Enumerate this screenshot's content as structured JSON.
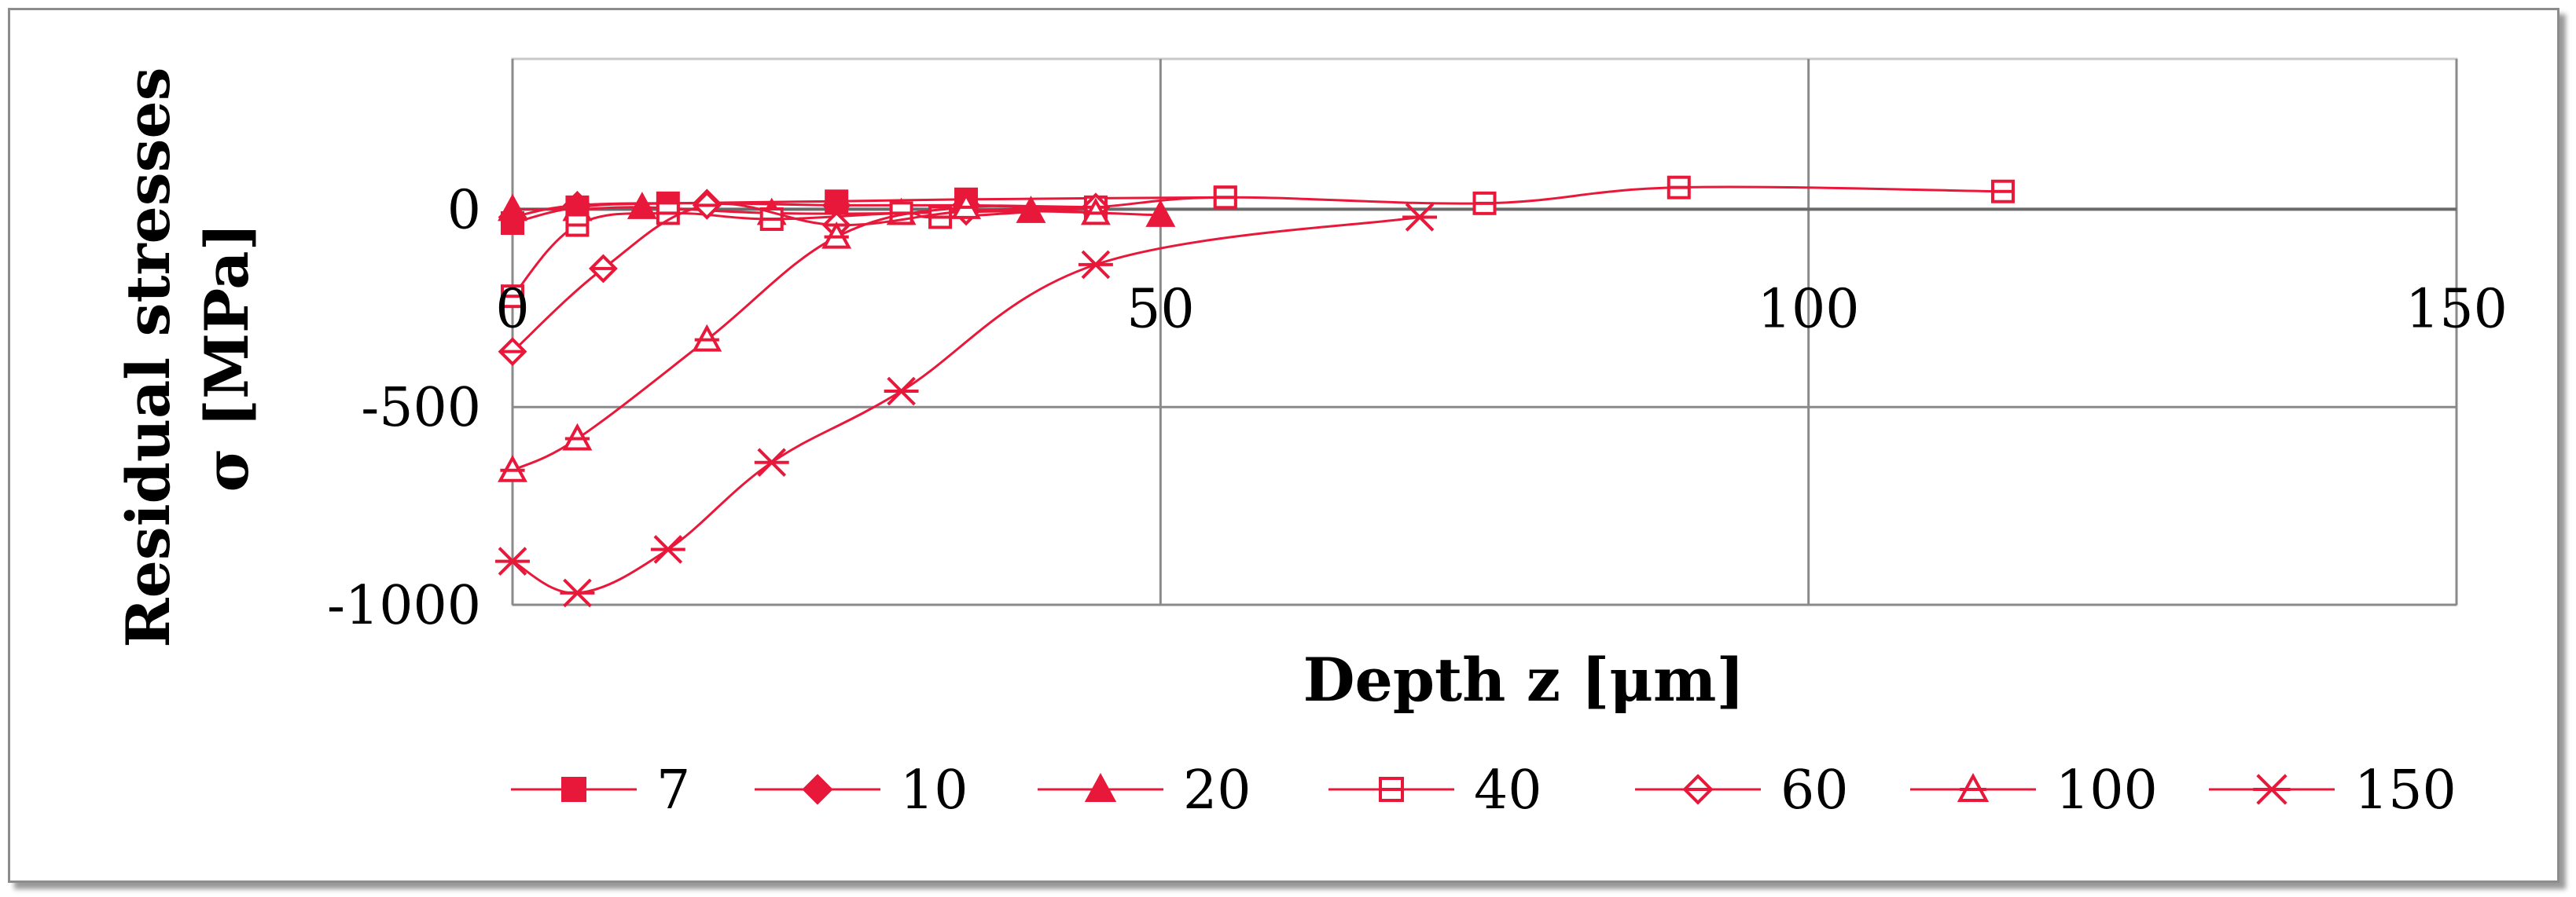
{
  "chart_data": {
    "type": "line",
    "title": "",
    "xlabel": "Depth z [μm]",
    "ylabel_line1": "Residual stresses",
    "ylabel_line2": "σ [MPa]",
    "xlim": [
      0,
      150
    ],
    "ylim": [
      -1000,
      380
    ],
    "x_ticks": [
      0,
      50,
      100,
      150
    ],
    "y_ticks": [
      0,
      -500,
      -1000
    ],
    "grid": true,
    "legend_position": "bottom",
    "color": "#e8183a",
    "series": [
      {
        "name": "7",
        "marker": "square-filled",
        "points": [
          [
            0,
            -35
          ],
          [
            5,
            5
          ],
          [
            12,
            15
          ],
          [
            25,
            20
          ],
          [
            35,
            25
          ],
          [
            55,
            30
          ]
        ]
      },
      {
        "name": "10",
        "marker": "diamond-filled",
        "points": [
          [
            0,
            -20
          ],
          [
            5,
            10
          ],
          [
            15,
            15
          ],
          [
            25,
            10
          ],
          [
            35,
            10
          ],
          [
            45,
            5
          ]
        ]
      },
      {
        "name": "20",
        "marker": "triangle-filled",
        "points": [
          [
            0,
            0
          ],
          [
            5,
            0
          ],
          [
            10,
            5
          ],
          [
            20,
            -10
          ],
          [
            30,
            -10
          ],
          [
            40,
            -5
          ],
          [
            50,
            -15
          ]
        ]
      },
      {
        "name": "40",
        "marker": "square-open",
        "points": [
          [
            0,
            -220
          ],
          [
            5,
            -40
          ],
          [
            12,
            -10
          ],
          [
            20,
            -25
          ],
          [
            30,
            -10
          ],
          [
            33,
            -20
          ],
          [
            45,
            5
          ],
          [
            55,
            30
          ],
          [
            75,
            15
          ],
          [
            90,
            55
          ],
          [
            115,
            45
          ]
        ]
      },
      {
        "name": "60",
        "marker": "diamond-open",
        "points": [
          [
            0,
            -360
          ],
          [
            7,
            -150
          ],
          [
            15,
            10
          ],
          [
            25,
            -40
          ],
          [
            35,
            -5
          ],
          [
            45,
            5
          ]
        ]
      },
      {
        "name": "100",
        "marker": "triangle-open",
        "points": [
          [
            0,
            -660
          ],
          [
            5,
            -580
          ],
          [
            15,
            -330
          ],
          [
            25,
            -70
          ],
          [
            35,
            5
          ],
          [
            45,
            -10
          ]
        ]
      },
      {
        "name": "150",
        "marker": "asterisk",
        "points": [
          [
            0,
            -890
          ],
          [
            5,
            -970
          ],
          [
            12,
            -860
          ],
          [
            20,
            -640
          ],
          [
            30,
            -460
          ],
          [
            45,
            -140
          ],
          [
            70,
            -20
          ]
        ]
      }
    ]
  }
}
